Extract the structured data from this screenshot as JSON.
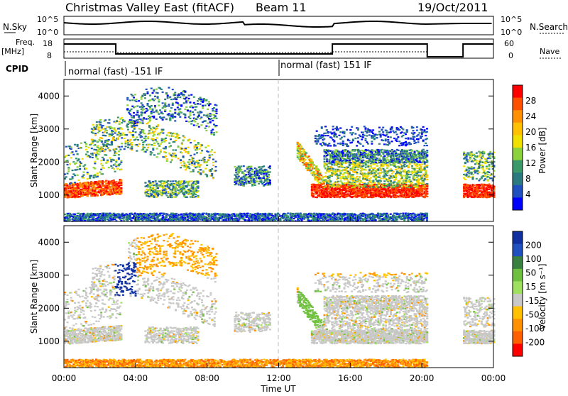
{
  "header": {
    "title": "Christmas Valley East (fitACF)",
    "beam": "Beam 11",
    "date": "19/Oct/2011"
  },
  "top_panels": {
    "nsky_label": "N.Sky",
    "nsearch_label": "N.Search",
    "noise_ticks": [
      "10^5",
      "10^0"
    ],
    "freq_label": "Freq.",
    "freq_unit": "[MHz]",
    "freq_ticks": [
      "18",
      "8"
    ],
    "nave_label": "Nave",
    "nave_ticks": [
      "60",
      "0"
    ],
    "cpid_label": "CPID",
    "cpid_segments": [
      "normal (fast) -151 IF",
      "normal (fast) 151 IF"
    ]
  },
  "x_axis": {
    "label": "Time UT",
    "ticks": [
      "00:00",
      "04:00",
      "08:00",
      "12:00",
      "16:00",
      "20:00",
      "00:00"
    ]
  },
  "chart_data": [
    {
      "type": "heatmap",
      "panel": "power",
      "ylabel": "Slant Range [km]",
      "yticks": [
        1000,
        2000,
        3000,
        4000
      ],
      "ylim": [
        200,
        4500
      ],
      "xlim_hours": [
        0,
        24
      ],
      "colorbar": {
        "label": "Power [dB]",
        "ticks": [
          "28",
          "24",
          "20",
          "16",
          "12",
          "8",
          "4"
        ],
        "colors": [
          "#ff0000",
          "#ff5000",
          "#ff9000",
          "#ffc000",
          "#f0e000",
          "#8cd23c",
          "#3c9a6a",
          "#2a7a80",
          "#2050c0",
          "#0000ff"
        ]
      }
    },
    {
      "type": "heatmap",
      "panel": "velocity",
      "ylabel": "Slant Range [km]",
      "yticks": [
        1000,
        2000,
        3000,
        4000
      ],
      "ylim": [
        200,
        4500
      ],
      "xlim_hours": [
        0,
        24
      ],
      "colorbar": {
        "label": "Velocity [m s⁻¹]",
        "ticks": [
          "200",
          "100",
          "50",
          "15",
          "-15",
          "-50",
          "-100",
          "-200"
        ],
        "colors": [
          "#1030a0",
          "#2050c0",
          "#3a8040",
          "#70c040",
          "#a0e060",
          "#c8c8c8",
          "#ffc000",
          "#ff9000",
          "#ff6000",
          "#ff0000"
        ]
      }
    }
  ]
}
